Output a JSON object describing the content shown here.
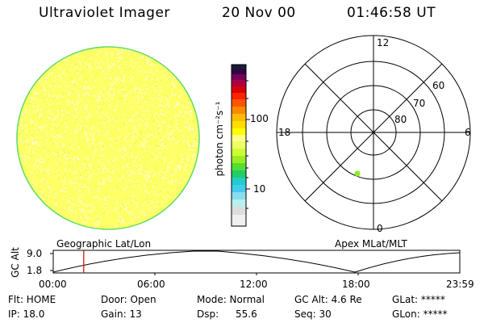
{
  "header": {
    "instrument": "Ultraviolet Imager",
    "date": "20 Nov 00",
    "time": "01:46:58 UT"
  },
  "colorbar": {
    "unit_label": "photon cm⁻²s⁻¹",
    "ticks": [
      "100",
      "10"
    ]
  },
  "polar_plot": {
    "mlt_labels": {
      "top": "12",
      "left": "18",
      "right": "6",
      "bottom": "0"
    },
    "lat_labels": [
      "60",
      "70",
      "80"
    ]
  },
  "timeline": {
    "left_title": "Geographic Lat/Lon",
    "right_title": "Apex MLat/MLT",
    "y_label": "GC Alt",
    "y_ticks": [
      "9.0",
      "1.8"
    ],
    "x_ticks": [
      "00:00",
      "06:00",
      "12:00",
      "18:00",
      "23:59"
    ],
    "current_time_fraction": 0.075
  },
  "status": {
    "flt": "Flt: HOME",
    "door": "Door: Open",
    "mode": "Mode: Normal",
    "gc_alt": "GC Alt: 4.6 Re",
    "glat": "GLat: *****",
    "ip": "IP: 18.0",
    "gain": "Gain: 13",
    "dsp_label": "Dsp:",
    "dsp_value": "55.6",
    "seq": "Seq: 30",
    "glon": "GLon: *****"
  }
}
